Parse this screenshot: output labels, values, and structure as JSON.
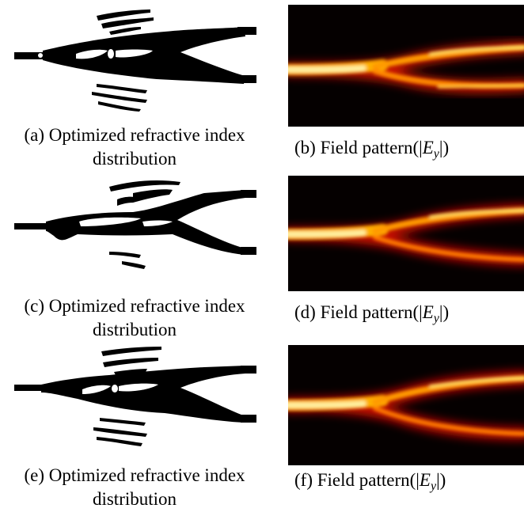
{
  "figure": {
    "panels": [
      {
        "id": "a",
        "label": "(a)",
        "line1": "Optimized refractive index",
        "line2": "distribution"
      },
      {
        "id": "b",
        "label": "(b)",
        "text": "Field pattern",
        "math": {
          "open": "(|",
          "var": "E",
          "sub": "y",
          "close": "|)"
        }
      },
      {
        "id": "c",
        "label": "(c)",
        "line1": "Optimized refractive index",
        "line2": "distribution"
      },
      {
        "id": "d",
        "label": "(d)",
        "text": "Field pattern",
        "math": {
          "open": "(|",
          "var": "E",
          "sub": "y",
          "close": "|)"
        }
      },
      {
        "id": "e",
        "label": "(e)",
        "line1": "Optimized refractive index",
        "line2": "distribution"
      },
      {
        "id": "f",
        "label": "(f)",
        "text": "Field pattern",
        "math": {
          "open": "(|",
          "var": "E",
          "sub": "y",
          "close": "|)"
        }
      }
    ],
    "colors": {
      "structure": "#000000",
      "field_background": "#050000",
      "field_mid": "#d01800",
      "field_hot": "#ffd020",
      "field_peak": "#fff4b0"
    }
  }
}
